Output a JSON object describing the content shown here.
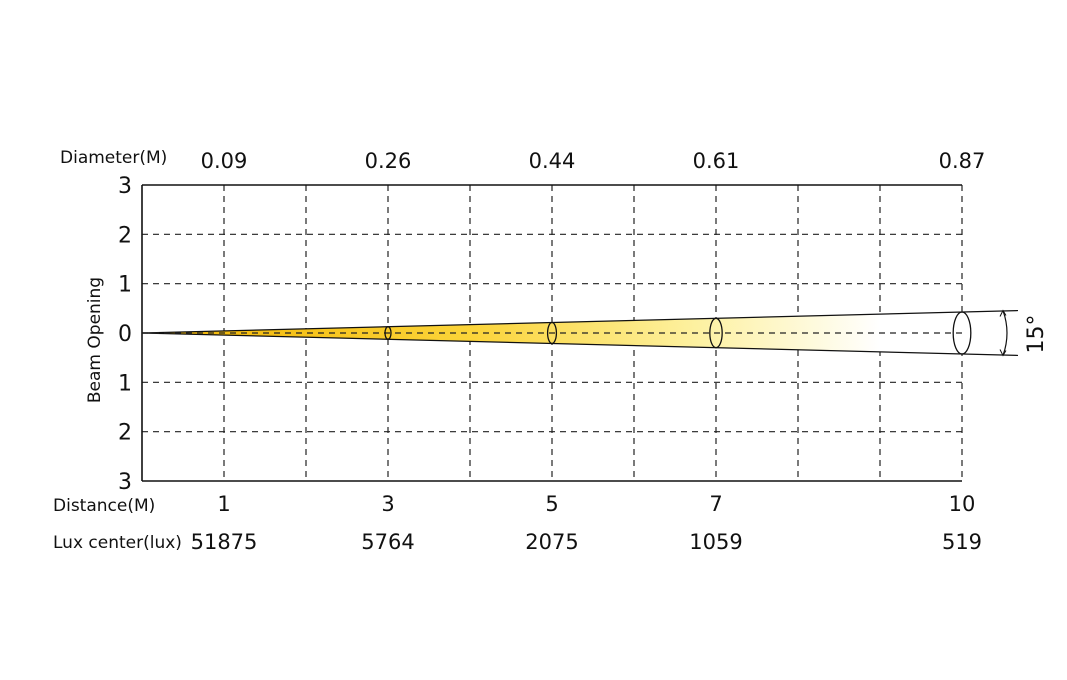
{
  "chart_data": {
    "type": "beam-diagram",
    "beam_angle_label": "15°",
    "ylabel": "Beam Opening",
    "y_ticks": [
      "3",
      "2",
      "1",
      "0",
      "1",
      "2",
      "3"
    ],
    "ylim": [
      -3,
      3
    ],
    "xlim": [
      0,
      10
    ],
    "grid": true,
    "row_labels": {
      "diameter": "Diameter(M)",
      "distance": "Distance(M)",
      "lux": "Lux center(lux)"
    },
    "points": [
      {
        "distance": "1",
        "diameter": "0.09",
        "lux": "51875"
      },
      {
        "distance": "3",
        "diameter": "0.26",
        "lux": "5764"
      },
      {
        "distance": "5",
        "diameter": "0.44",
        "lux": "2075"
      },
      {
        "distance": "7",
        "diameter": "0.61",
        "lux": "1059"
      },
      {
        "distance": "10",
        "diameter": "0.87",
        "lux": "519"
      }
    ],
    "colors": {
      "beam_start": "#f2b400",
      "beam_mid": "#fde25a",
      "beam_end": "#ffffff",
      "lines": "#111111"
    }
  }
}
